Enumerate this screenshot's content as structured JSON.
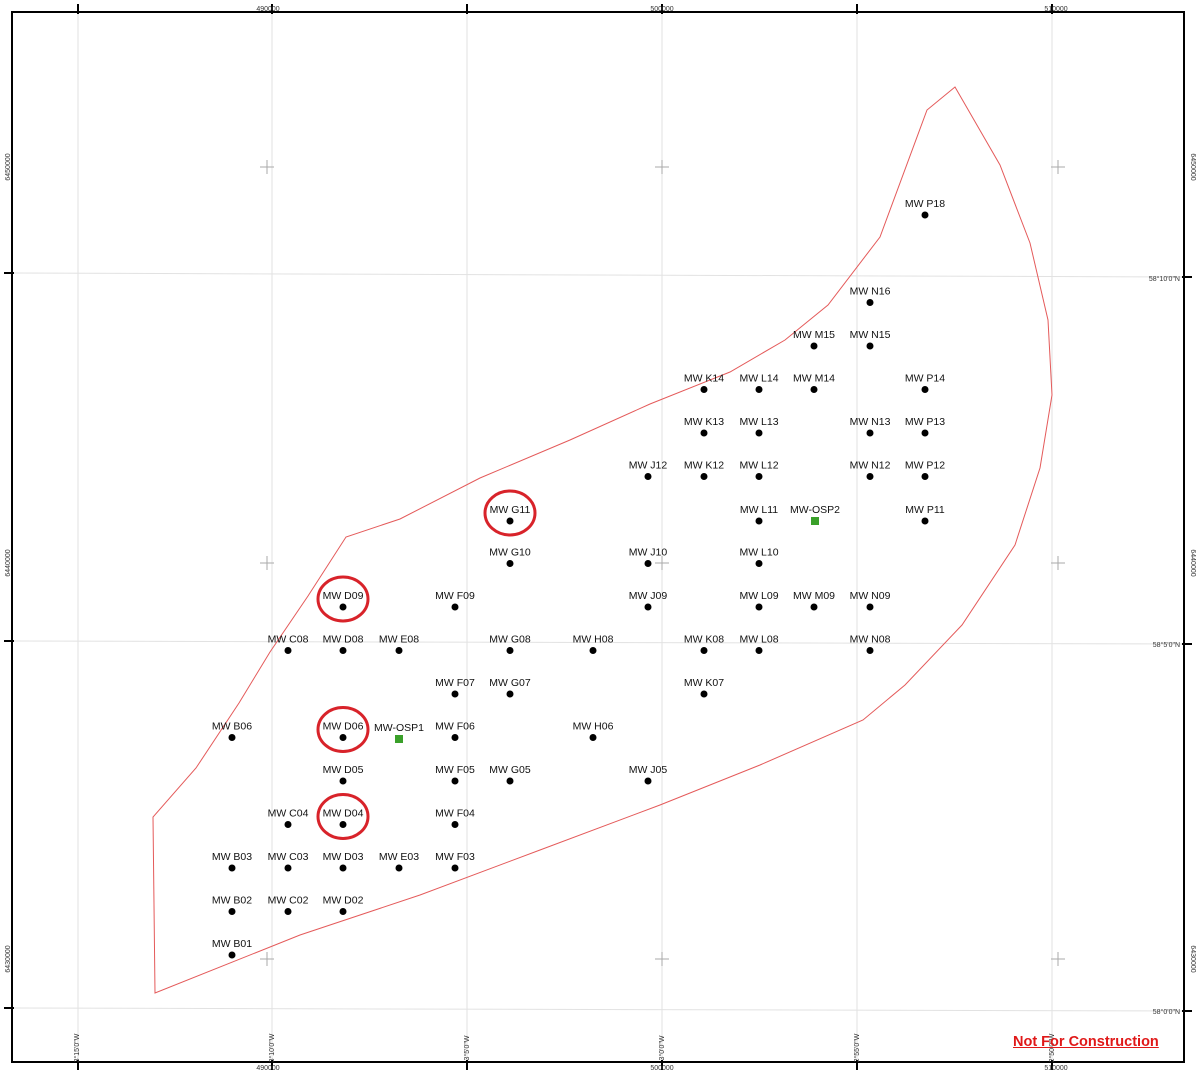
{
  "map": {
    "turbines": [
      "MW P18",
      "MW N16",
      "MW M15",
      "MW N15",
      "MW K14",
      "MW L14",
      "MW M14",
      "MW P14",
      "MW K13",
      "MW L13",
      "MW N13",
      "MW P13",
      "MW J12",
      "MW K12",
      "MW L12",
      "MW N12",
      "MW P12",
      "MW G11",
      "MW L11",
      "MW P11",
      "MW G10",
      "MW J10",
      "MW L10",
      "MW D09",
      "MW F09",
      "MW J09",
      "MW L09",
      "MW M09",
      "MW N09",
      "MW C08",
      "MW D08",
      "MW E08",
      "MW G08",
      "MW H08",
      "MW K08",
      "MW L08",
      "MW N08",
      "MW F07",
      "MW G07",
      "MW K07",
      "MW B06",
      "MW D06",
      "MW F06",
      "MW H06",
      "MW D05",
      "MW F05",
      "MW G05",
      "MW J05",
      "MW C04",
      "MW D04",
      "MW F04",
      "MW B03",
      "MW C03",
      "MW D03",
      "MW E03",
      "MW F03",
      "MW B02",
      "MW C02",
      "MW D02",
      "MW B01"
    ],
    "substations": [
      "MW-OSP2",
      "MW-OSP1"
    ],
    "highlighted": [
      "MW G11",
      "MW D09",
      "MW D06",
      "MW D04"
    ],
    "easting_ticks": [
      "490000",
      "500000",
      "510000"
    ],
    "northing_ticks": [
      "6450000",
      "6440000",
      "6430000"
    ],
    "longitude_ticks": [
      "3°15'0\"W",
      "3°10'0\"W",
      "3°5'0\"W",
      "3°0'0\"W",
      "2°55'0\"W",
      "2°50'0\"W"
    ],
    "latitude_ticks": [
      "58°10'0\"N",
      "58°5'0\"N",
      "58°0'0\"N"
    ],
    "colors": {
      "boundary": "#e45a5a",
      "highlight": "#d8232a",
      "turbine": "#000000",
      "substation": "#3aa02a",
      "note": "#e01818"
    }
  },
  "note": "Not For Construction"
}
